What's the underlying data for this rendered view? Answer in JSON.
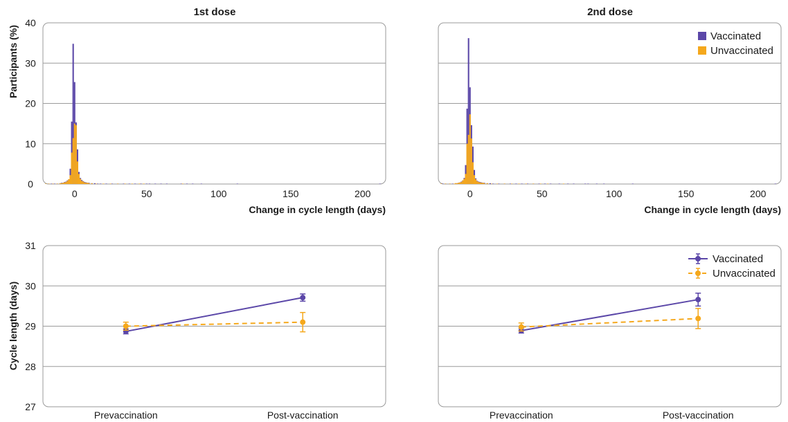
{
  "colors": {
    "vaccinated": "#5b47a8",
    "unvaccinated": "#f5a81c"
  },
  "chart_data": [
    {
      "type": "histogram",
      "title": "1st dose",
      "xlabel": "Change in cycle length (days)",
      "ylabel": "Participants (%)",
      "xlim": [
        -22,
        216
      ],
      "ylim": [
        0,
        40
      ],
      "xticks": [
        0,
        50,
        100,
        150,
        200
      ],
      "yticks": [
        0,
        10,
        20,
        30,
        40
      ],
      "legend": false,
      "bin_width": 1,
      "series": [
        {
          "name": "Vaccinated",
          "points": [
            [
              -18,
              0.1
            ],
            [
              -16,
              0.1
            ],
            [
              -14,
              0.1
            ],
            [
              -12,
              0.1
            ],
            [
              -10,
              0.2
            ],
            [
              -9,
              0.3
            ],
            [
              -8,
              0.3
            ],
            [
              -7,
              0.5
            ],
            [
              -6,
              0.6
            ],
            [
              -5,
              0.9
            ],
            [
              -4,
              1.2
            ],
            [
              -3,
              3.8
            ],
            [
              -2,
              15.5
            ],
            [
              -1,
              34.8
            ],
            [
              0,
              25.3
            ],
            [
              1,
              15.3
            ],
            [
              2,
              8.6
            ],
            [
              3,
              3
            ],
            [
              4,
              1.5
            ],
            [
              5,
              1
            ],
            [
              6,
              0.7
            ],
            [
              7,
              0.5
            ],
            [
              8,
              0.4
            ],
            [
              9,
              0.3
            ],
            [
              10,
              0.3
            ],
            [
              12,
              0.2
            ],
            [
              14,
              0.2
            ],
            [
              16,
              0.1
            ],
            [
              18,
              0.1
            ],
            [
              22,
              0.1
            ],
            [
              26,
              0.1
            ],
            [
              30,
              0.1
            ],
            [
              34,
              0.1
            ],
            [
              38,
              0.1
            ],
            [
              42,
              0.1
            ],
            [
              46,
              0.1
            ],
            [
              50,
              0.1
            ],
            [
              52,
              0.1
            ],
            [
              56,
              0.1
            ],
            [
              60,
              0.1
            ],
            [
              64,
              0.1
            ],
            [
              74,
              0.1
            ],
            [
              78,
              0.1
            ],
            [
              82,
              0.1
            ],
            [
              88,
              0.1
            ],
            [
              113,
              0.1
            ],
            [
              212,
              0.1
            ]
          ]
        },
        {
          "name": "Unvaccinated",
          "points": [
            [
              -20,
              0.1
            ],
            [
              -18,
              0.1
            ],
            [
              -15,
              0.1
            ],
            [
              -12,
              0.1
            ],
            [
              -10,
              0.2
            ],
            [
              -9,
              0.2
            ],
            [
              -8,
              0.3
            ],
            [
              -7,
              0.4
            ],
            [
              -6,
              0.5
            ],
            [
              -5,
              0.8
            ],
            [
              -4,
              1.2
            ],
            [
              -3,
              2.2
            ],
            [
              -2,
              7.8
            ],
            [
              -1,
              11.4
            ],
            [
              0,
              15
            ],
            [
              1,
              14.6
            ],
            [
              2,
              5.6
            ],
            [
              3,
              2.5
            ],
            [
              4,
              1.3
            ],
            [
              5,
              0.8
            ],
            [
              6,
              0.6
            ],
            [
              7,
              0.4
            ],
            [
              8,
              0.3
            ],
            [
              9,
              0.3
            ],
            [
              10,
              0.2
            ],
            [
              12,
              0.2
            ],
            [
              15,
              0.1
            ],
            [
              20,
              0.1
            ],
            [
              25,
              0.1
            ],
            [
              30,
              0.1
            ],
            [
              35,
              0.1
            ],
            [
              40,
              0.1
            ],
            [
              45,
              0.1
            ],
            [
              48,
              0.1
            ],
            [
              75,
              0.1
            ]
          ]
        }
      ]
    },
    {
      "type": "histogram",
      "title": "2nd dose",
      "xlabel": "Change in cycle length (days)",
      "ylabel": "",
      "xlim": [
        -22,
        216
      ],
      "ylim": [
        0,
        40
      ],
      "xticks": [
        0,
        50,
        100,
        150,
        200
      ],
      "yticks": [
        0,
        10,
        20,
        30,
        40
      ],
      "legend": "top-right",
      "bin_width": 1,
      "series": [
        {
          "name": "Vaccinated",
          "points": [
            [
              -19,
              0.1
            ],
            [
              -17,
              0.1
            ],
            [
              -14,
              0.1
            ],
            [
              -12,
              0.1
            ],
            [
              -10,
              0.2
            ],
            [
              -9,
              0.2
            ],
            [
              -8,
              0.3
            ],
            [
              -7,
              0.4
            ],
            [
              -6,
              0.6
            ],
            [
              -5,
              0.9
            ],
            [
              -4,
              1.5
            ],
            [
              -3,
              4.7
            ],
            [
              -2,
              18.7
            ],
            [
              -1,
              36.2
            ],
            [
              0,
              24
            ],
            [
              1,
              14.6
            ],
            [
              2,
              9.3
            ],
            [
              3,
              3.5
            ],
            [
              4,
              1.4
            ],
            [
              5,
              0.8
            ],
            [
              6,
              0.6
            ],
            [
              7,
              0.5
            ],
            [
              8,
              0.4
            ],
            [
              9,
              0.3
            ],
            [
              10,
              0.3
            ],
            [
              12,
              0.2
            ],
            [
              14,
              0.2
            ],
            [
              16,
              0.1
            ],
            [
              20,
              0.1
            ],
            [
              24,
              0.1
            ],
            [
              28,
              0.1
            ],
            [
              32,
              0.1
            ],
            [
              36,
              0.1
            ],
            [
              40,
              0.1
            ],
            [
              44,
              0.1
            ],
            [
              48,
              0.1
            ],
            [
              52,
              0.1
            ],
            [
              56,
              0.1
            ],
            [
              62,
              0.1
            ],
            [
              68,
              0.1
            ],
            [
              72,
              0.1
            ],
            [
              80,
              0.1
            ],
            [
              82,
              0.1
            ],
            [
              88,
              0.1
            ],
            [
              93,
              0.1
            ],
            [
              113,
              0.1
            ],
            [
              212,
              0.1
            ]
          ]
        },
        {
          "name": "Unvaccinated",
          "points": [
            [
              -20,
              0.1
            ],
            [
              -17,
              0.1
            ],
            [
              -14,
              0.1
            ],
            [
              -11,
              0.1
            ],
            [
              -10,
              0.2
            ],
            [
              -9,
              0.2
            ],
            [
              -8,
              0.3
            ],
            [
              -7,
              0.4
            ],
            [
              -6,
              0.5
            ],
            [
              -5,
              0.9
            ],
            [
              -4,
              1.3
            ],
            [
              -3,
              2.5
            ],
            [
              -2,
              10
            ],
            [
              -1,
              12.2
            ],
            [
              0,
              17.3
            ],
            [
              1,
              11.3
            ],
            [
              2,
              5.4
            ],
            [
              3,
              2.2
            ],
            [
              4,
              1.2
            ],
            [
              5,
              0.7
            ],
            [
              6,
              0.5
            ],
            [
              7,
              0.4
            ],
            [
              8,
              0.3
            ],
            [
              9,
              0.3
            ],
            [
              10,
              0.2
            ],
            [
              12,
              0.2
            ],
            [
              15,
              0.1
            ],
            [
              19,
              0.1
            ],
            [
              24,
              0.1
            ],
            [
              29,
              0.1
            ],
            [
              34,
              0.1
            ],
            [
              39,
              0.1
            ],
            [
              44,
              0.1
            ],
            [
              49,
              0.1
            ],
            [
              54,
              0.1
            ],
            [
              65,
              0.1
            ]
          ]
        }
      ]
    },
    {
      "type": "line",
      "title": "",
      "xlabel": "",
      "ylabel": "Cycle length (days)",
      "categories": [
        "Prevaccination",
        "Post-vaccination"
      ],
      "ylim": [
        27,
        31
      ],
      "yticks": [
        27,
        28,
        29,
        30,
        31
      ],
      "legend": false,
      "series": [
        {
          "name": "Vaccinated",
          "values": [
            28.87,
            29.71
          ],
          "err_low": [
            28.81,
            29.62
          ],
          "err_high": [
            28.93,
            29.8
          ],
          "dashed": false
        },
        {
          "name": "Unvaccinated",
          "values": [
            29.0,
            29.1
          ],
          "err_low": [
            28.9,
            28.86
          ],
          "err_high": [
            29.1,
            29.34
          ],
          "dashed": true
        }
      ]
    },
    {
      "type": "line",
      "title": "",
      "xlabel": "",
      "ylabel": "",
      "categories": [
        "Prevaccination",
        "Post-vaccination"
      ],
      "ylim": [
        27,
        31
      ],
      "yticks": [
        27,
        28,
        29,
        30,
        31
      ],
      "legend": "top-right",
      "series": [
        {
          "name": "Vaccinated",
          "values": [
            28.89,
            29.66
          ],
          "err_low": [
            28.83,
            29.5
          ],
          "err_high": [
            28.95,
            29.82
          ],
          "dashed": false
        },
        {
          "name": "Unvaccinated",
          "values": [
            28.98,
            29.19
          ],
          "err_low": [
            28.88,
            28.94
          ],
          "err_high": [
            29.08,
            29.44
          ],
          "dashed": true
        }
      ]
    }
  ]
}
